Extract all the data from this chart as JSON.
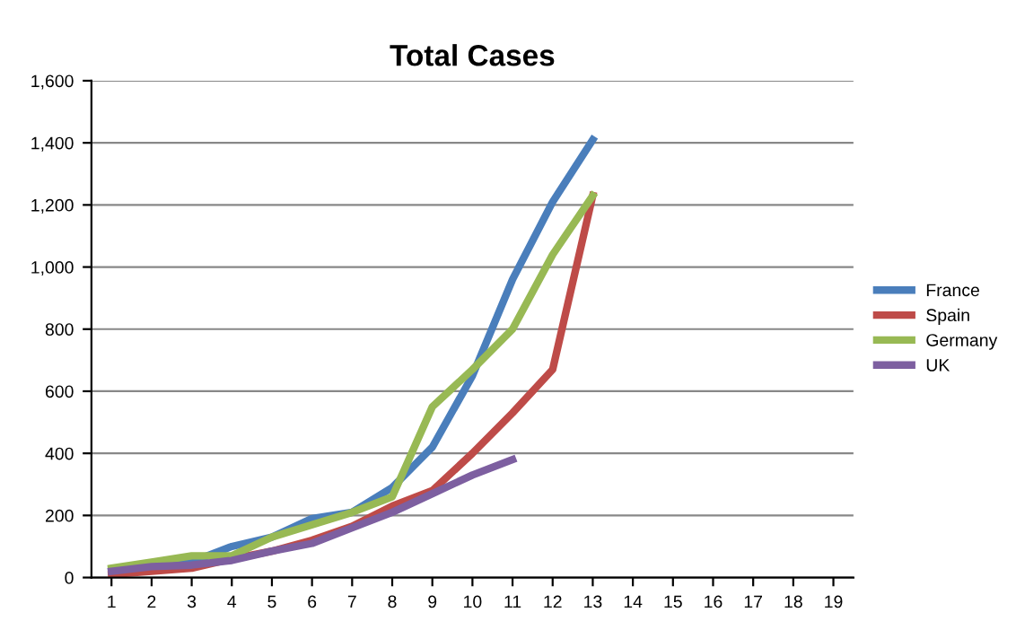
{
  "chart_data": {
    "type": "line",
    "title": "Total Cases",
    "categories": [
      "1",
      "2",
      "3",
      "4",
      "5",
      "6",
      "7",
      "8",
      "9",
      "10",
      "11",
      "12",
      "13",
      "14",
      "15",
      "16",
      "17",
      "18",
      "19"
    ],
    "series": [
      {
        "name": "France",
        "color": "#4a7ebb",
        "values": [
          20,
          30,
          50,
          100,
          130,
          190,
          210,
          290,
          420,
          650,
          960,
          1210,
          1410,
          null,
          null,
          null,
          null,
          null,
          null
        ]
      },
      {
        "name": "Spain",
        "color": "#be4b48",
        "values": [
          10,
          20,
          30,
          60,
          85,
          120,
          165,
          230,
          280,
          400,
          530,
          670,
          1230,
          null,
          null,
          null,
          null,
          null,
          null
        ]
      },
      {
        "name": "Germany",
        "color": "#98b954",
        "values": [
          30,
          50,
          70,
          70,
          130,
          170,
          210,
          260,
          550,
          670,
          800,
          1040,
          1230,
          null,
          null,
          null,
          null,
          null,
          null
        ]
      },
      {
        "name": "UK",
        "color": "#7d5fa0",
        "values": [
          20,
          35,
          40,
          55,
          85,
          110,
          160,
          210,
          270,
          330,
          380,
          null,
          null,
          null,
          null,
          null,
          null,
          null,
          null
        ]
      }
    ],
    "ylim": [
      0,
      1600
    ],
    "yticks": [
      {
        "value": 0,
        "label": "0"
      },
      {
        "value": 200,
        "label": "200"
      },
      {
        "value": 400,
        "label": "400"
      },
      {
        "value": 600,
        "label": "600"
      },
      {
        "value": 800,
        "label": "800"
      },
      {
        "value": 1000,
        "label": "1,000"
      },
      {
        "value": 1200,
        "label": "1,200"
      },
      {
        "value": 1400,
        "label": "1,400"
      },
      {
        "value": 1600,
        "label": "1,600"
      }
    ],
    "grid": "y",
    "legend": "right",
    "marker": "none",
    "line_style": "solid"
  }
}
